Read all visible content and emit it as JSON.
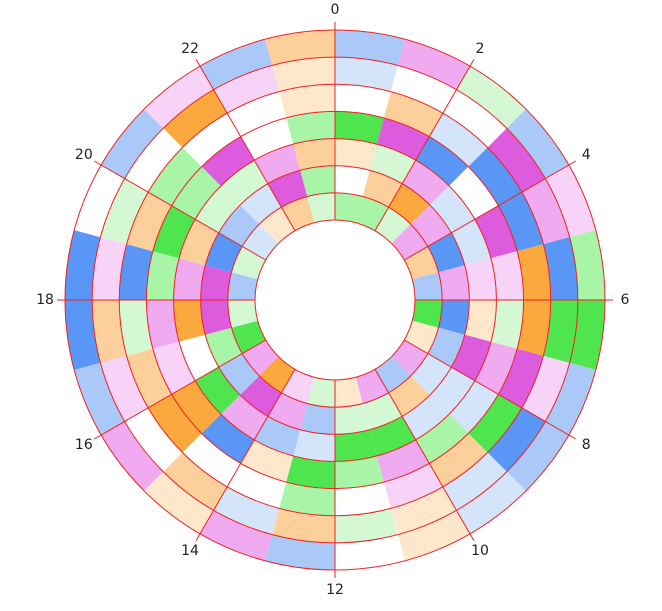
{
  "chart_data": {
    "type": "heatmap",
    "layout": "radial",
    "angular_tick_labels": [
      "0",
      "2",
      "4",
      "6",
      "8",
      "10",
      "12",
      "14",
      "16",
      "18",
      "20",
      "22"
    ],
    "n_sectors": 24,
    "n_rings": 7,
    "ring_order": "outer-to-inner",
    "palette": [
      "#ffffff",
      "#ffe7cc",
      "#d4f7d4",
      "#f7d4f7",
      "#d4e4fa",
      "#fdcf9a",
      "#a8f5a8",
      "#f0aaf0",
      "#aac9f8",
      "#fba93e",
      "#4ee54e",
      "#dd5bdd",
      "#5a96f5"
    ],
    "grid_color": "#ee2222",
    "grid": true,
    "matrix": [
      [
        8,
        7,
        2,
        8,
        3,
        6,
        10,
        8,
        8,
        4,
        1,
        0,
        8,
        7,
        1,
        7,
        8,
        12,
        12,
        0,
        8,
        3,
        8,
        5
      ],
      [
        4,
        0,
        0,
        11,
        7,
        12,
        10,
        3,
        12,
        4,
        1,
        2,
        5,
        4,
        5,
        0,
        3,
        5,
        3,
        2,
        0,
        9,
        3,
        1
      ],
      [
        0,
        5,
        4,
        12,
        12,
        9,
        9,
        11,
        10,
        5,
        3,
        0,
        6,
        0,
        0,
        9,
        5,
        2,
        12,
        5,
        6,
        0,
        0,
        1
      ],
      [
        10,
        11,
        12,
        0,
        11,
        3,
        2,
        7,
        4,
        6,
        7,
        6,
        10,
        1,
        12,
        9,
        3,
        7,
        6,
        10,
        6,
        11,
        0,
        6
      ],
      [
        1,
        2,
        7,
        4,
        4,
        3,
        1,
        11,
        4,
        4,
        10,
        10,
        4,
        8,
        7,
        10,
        0,
        9,
        7,
        5,
        2,
        2,
        7,
        5
      ],
      [
        0,
        5,
        9,
        7,
        12,
        7,
        12,
        8,
        4,
        5,
        2,
        2,
        8,
        7,
        11,
        8,
        6,
        11,
        11,
        12,
        8,
        4,
        11,
        6
      ],
      [
        6,
        6,
        2,
        7,
        5,
        8,
        10,
        1,
        7,
        8,
        7,
        1,
        2,
        3,
        9,
        7,
        10,
        2,
        8,
        2,
        4,
        1,
        5,
        2
      ]
    ]
  }
}
